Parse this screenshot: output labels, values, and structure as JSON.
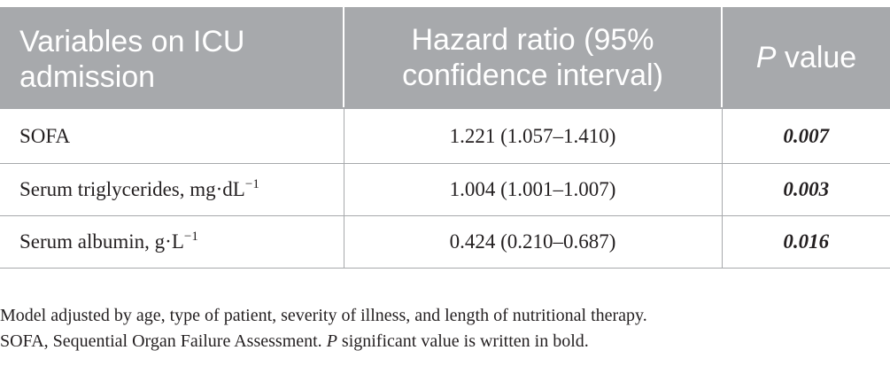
{
  "table": {
    "headers": {
      "variables": "Variables on ICU admission",
      "variables_line1": "Variables on ICU",
      "variables_line2": "admission",
      "hazard_line1": "Hazard ratio (95%",
      "hazard_line2": "confidence interval)",
      "p_italic": "P",
      "p_rest": " value"
    },
    "rows": [
      {
        "variable": "SOFA",
        "unit_sup": "",
        "hazard_ratio": "1.221 (1.057–1.410)",
        "p_value": "0.007"
      },
      {
        "variable": "Serum triglycerides, mg·dL",
        "unit_sup": "−1",
        "hazard_ratio": "1.004 (1.001–1.007)",
        "p_value": "0.003"
      },
      {
        "variable": "Serum albumin, g·L",
        "unit_sup": "−1",
        "hazard_ratio": "0.424 (0.210–0.687)",
        "p_value": "0.016"
      }
    ]
  },
  "footnotes": {
    "line1": "Model adjusted by age, type of patient, severity of illness, and length of nutritional therapy.",
    "line2_start": "SOFA, Sequential Organ Failure Assessment. ",
    "line2_italic": "P",
    "line2_end": " significant value is written in bold."
  },
  "colors": {
    "header_bg": "#a7a9ac",
    "header_text": "#ffffff",
    "body_text": "#231f20",
    "rule": "#a7a9ac"
  }
}
